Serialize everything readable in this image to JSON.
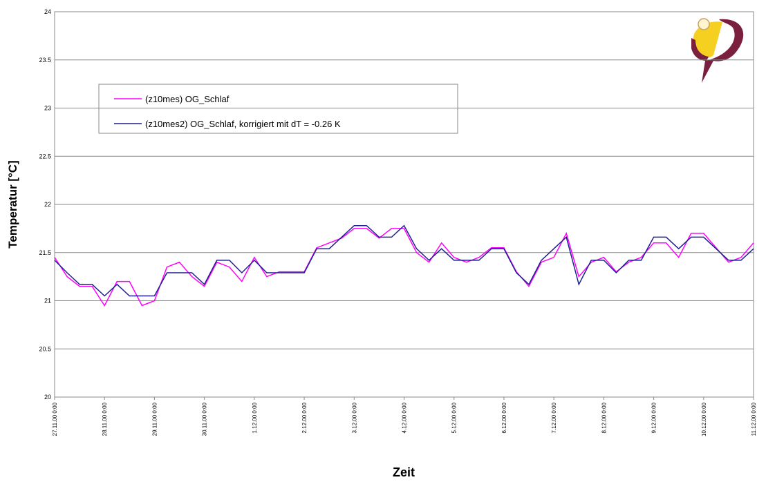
{
  "chart_data": {
    "type": "line",
    "ylabel": "Temperatur [°C]",
    "xlabel": "Zeit",
    "ylim": [
      20,
      24
    ],
    "yticks": [
      20,
      20.5,
      21,
      21.5,
      22,
      22.5,
      23,
      23.5,
      24
    ],
    "grid": true,
    "xlim": [
      "27.11.00 0:00",
      "11.12.00 0:00"
    ],
    "xticks": [
      "27.11.00 0:00",
      "28.11.00 0:00",
      "29.11.00 0:00",
      "30.11.00 0:00",
      "1.12.00 0:00",
      "2.12.00 0:00",
      "3.12.00 0:00",
      "4.12.00 0:00",
      "5.12.00 0:00",
      "6.12.00 0:00",
      "7.12.00 0:00",
      "8.12.00 0:00",
      "9.12.00 0:00",
      "10.12.00 0:00",
      "11.12.00 0:00"
    ],
    "x": [
      "27.11.00 0:00",
      "27.11.00 6:00",
      "27.11.00 12:00",
      "27.11.00 18:00",
      "28.11.00 0:00",
      "28.11.00 6:00",
      "28.11.00 12:00",
      "28.11.00 18:00",
      "29.11.00 0:00",
      "29.11.00 6:00",
      "29.11.00 12:00",
      "29.11.00 18:00",
      "30.11.00 0:00",
      "30.11.00 6:00",
      "30.11.00 12:00",
      "30.11.00 18:00",
      "1.12.00 0:00",
      "1.12.00 6:00",
      "1.12.00 12:00",
      "1.12.00 18:00",
      "2.12.00 0:00",
      "2.12.00 6:00",
      "2.12.00 12:00",
      "2.12.00 18:00",
      "3.12.00 0:00",
      "3.12.00 6:00",
      "3.12.00 12:00",
      "3.12.00 18:00",
      "4.12.00 0:00",
      "4.12.00 6:00",
      "4.12.00 12:00",
      "4.12.00 18:00",
      "5.12.00 0:00",
      "5.12.00 6:00",
      "5.12.00 12:00",
      "5.12.00 18:00",
      "6.12.00 0:00",
      "6.12.00 6:00",
      "6.12.00 12:00",
      "6.12.00 18:00",
      "7.12.00 0:00",
      "7.12.00 6:00",
      "7.12.00 12:00",
      "7.12.00 18:00",
      "8.12.00 0:00",
      "8.12.00 6:00",
      "8.12.00 12:00",
      "8.12.00 18:00",
      "9.12.00 0:00",
      "9.12.00 6:00",
      "9.12.00 12:00",
      "9.12.00 18:00",
      "10.12.00 0:00",
      "10.12.00 6:00",
      "10.12.00 12:00",
      "10.12.00 18:00",
      "11.12.00 0:00"
    ],
    "series": [
      {
        "name": "(z10mes) OG_Schlaf",
        "color": "#ff00ff",
        "values": [
          21.45,
          21.25,
          21.15,
          21.15,
          20.95,
          21.2,
          21.2,
          20.95,
          21.0,
          21.35,
          21.4,
          21.25,
          21.15,
          21.4,
          21.35,
          21.2,
          21.45,
          21.25,
          21.3,
          21.3,
          21.3,
          21.55,
          21.6,
          21.65,
          21.75,
          21.75,
          21.65,
          21.75,
          21.75,
          21.5,
          21.4,
          21.6,
          21.45,
          21.4,
          21.45,
          21.55,
          21.55,
          21.3,
          21.15,
          21.4,
          21.45,
          21.7,
          21.25,
          21.4,
          21.45,
          21.3,
          21.4,
          21.45,
          21.6,
          21.6,
          21.45,
          21.7,
          21.7,
          21.55,
          21.4,
          21.45,
          21.6
        ]
      },
      {
        "name": "(z10mes2) OG_Schlaf, korrigiert mit dT = -0.26 K",
        "color": "#1f1f8f",
        "values": [
          21.42,
          21.29,
          21.17,
          21.17,
          21.05,
          21.17,
          21.05,
          21.05,
          21.05,
          21.29,
          21.29,
          21.29,
          21.17,
          21.42,
          21.42,
          21.29,
          21.42,
          21.29,
          21.29,
          21.29,
          21.29,
          21.54,
          21.54,
          21.66,
          21.78,
          21.78,
          21.66,
          21.66,
          21.78,
          21.54,
          21.42,
          21.54,
          21.42,
          21.42,
          21.42,
          21.54,
          21.54,
          21.29,
          21.17,
          21.42,
          21.54,
          21.66,
          21.17,
          21.42,
          21.42,
          21.29,
          21.42,
          21.42,
          21.66,
          21.66,
          21.54,
          21.66,
          21.66,
          21.54,
          21.42,
          21.42,
          21.54
        ]
      }
    ]
  }
}
